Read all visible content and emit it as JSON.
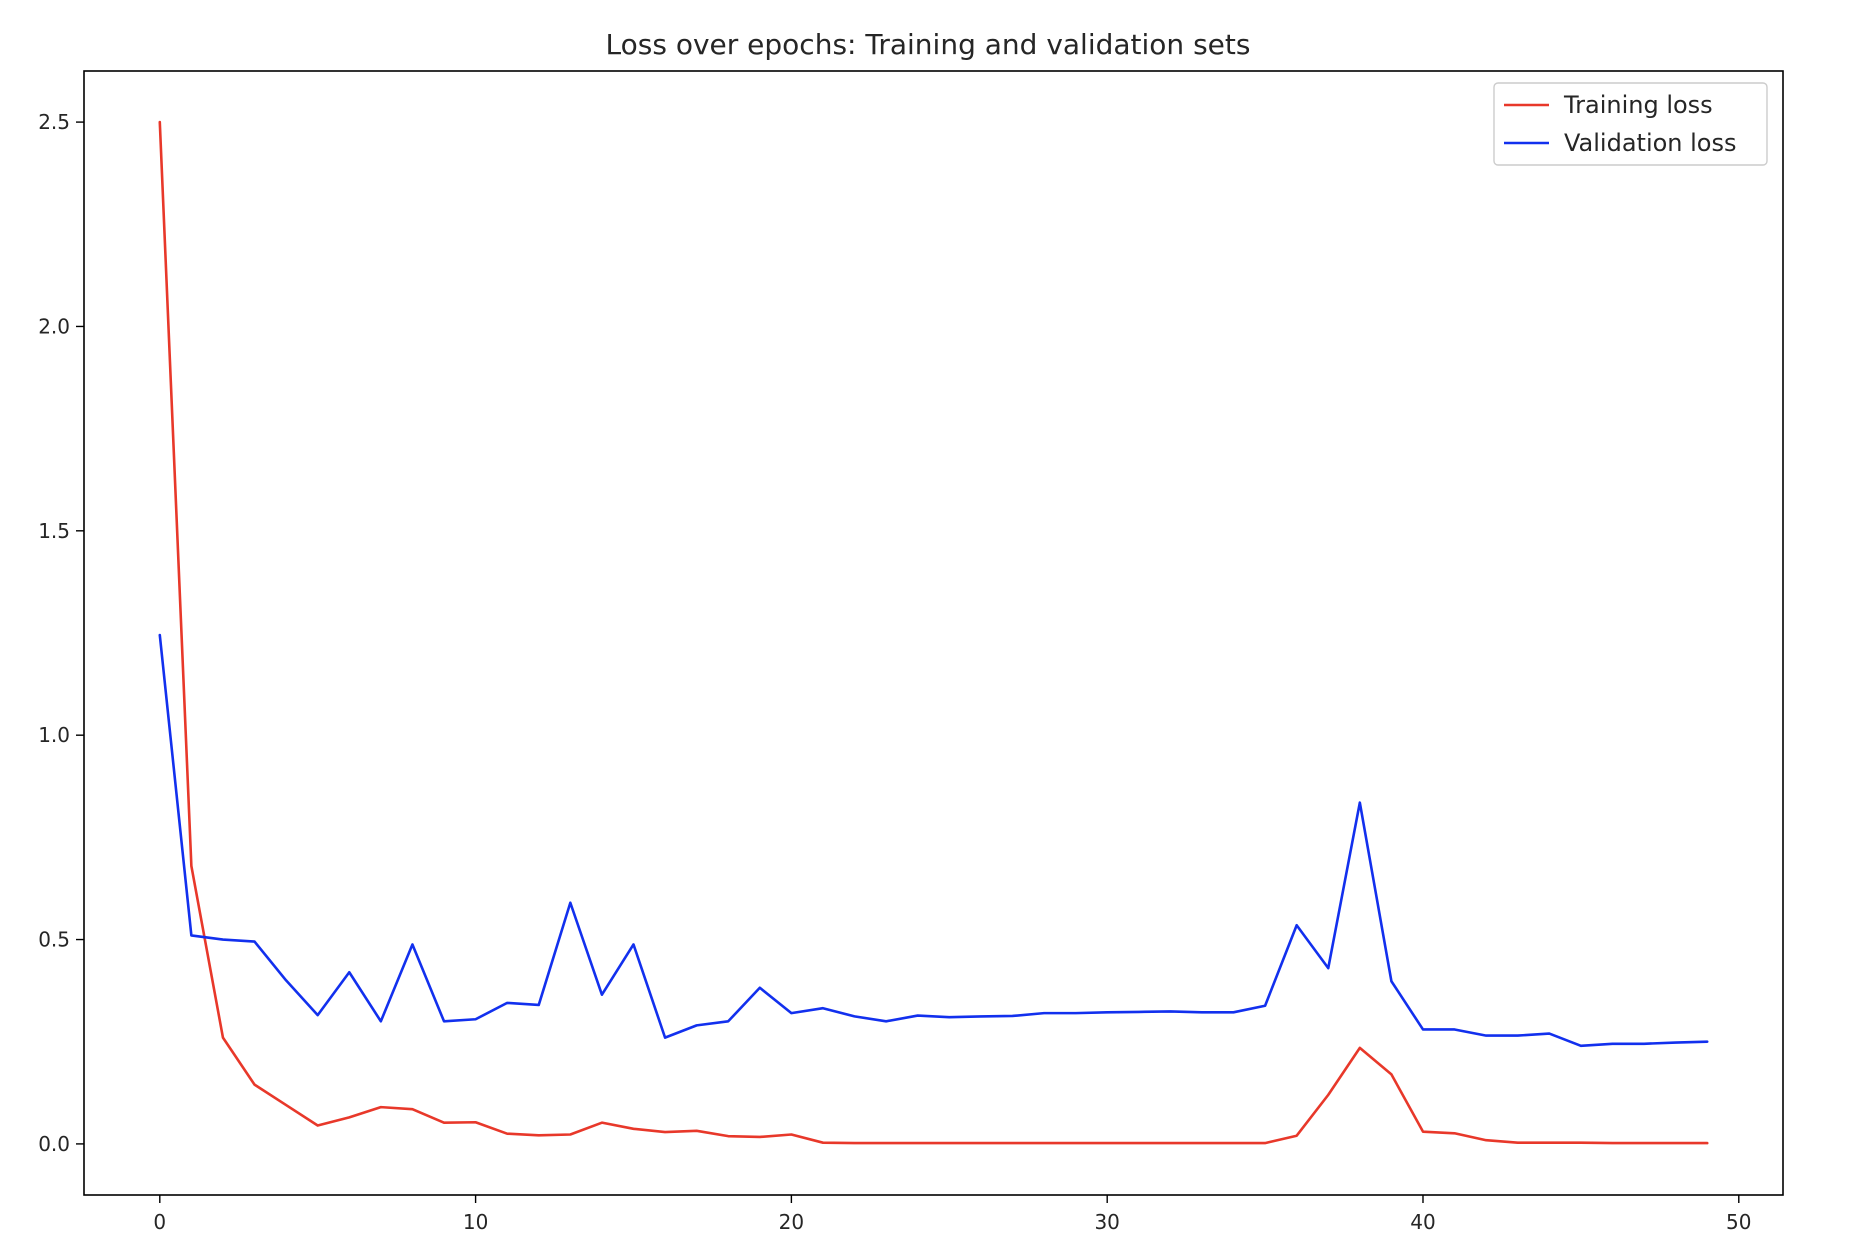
{
  "chart_data": {
    "type": "line",
    "title": "Loss over epochs: Training and validation sets",
    "xlabel": "",
    "ylabel": "",
    "xlim": [
      -2.4,
      51.4
    ],
    "ylim": [
      -0.125,
      2.625
    ],
    "xticks": [
      0,
      10,
      20,
      30,
      40,
      50
    ],
    "yticks": [
      0.0,
      0.5,
      1.0,
      1.5,
      2.0,
      2.5
    ],
    "xtick_labels": [
      "0",
      "10",
      "20",
      "30",
      "40",
      "50"
    ],
    "ytick_labels": [
      "0.0",
      "0.5",
      "1.0",
      "1.5",
      "2.0",
      "2.5"
    ],
    "grid": false,
    "legend_position": "top-right",
    "x": [
      0,
      1,
      2,
      3,
      4,
      5,
      6,
      7,
      8,
      9,
      10,
      11,
      12,
      13,
      14,
      15,
      16,
      17,
      18,
      19,
      20,
      21,
      22,
      23,
      24,
      25,
      26,
      27,
      28,
      29,
      30,
      31,
      32,
      33,
      34,
      35,
      36,
      37,
      38,
      39,
      40,
      41,
      42,
      43,
      44,
      45,
      46,
      47,
      48,
      49
    ],
    "series": [
      {
        "name": "Training loss",
        "color": "#e8382a",
        "values": [
          2.5,
          0.68,
          0.26,
          0.145,
          0.095,
          0.045,
          0.065,
          0.09,
          0.085,
          0.052,
          0.053,
          0.025,
          0.021,
          0.023,
          0.052,
          0.037,
          0.029,
          0.032,
          0.019,
          0.017,
          0.023,
          0.003,
          0.002,
          0.002,
          0.002,
          0.002,
          0.002,
          0.002,
          0.002,
          0.002,
          0.002,
          0.002,
          0.002,
          0.002,
          0.002,
          0.002,
          0.02,
          0.12,
          0.235,
          0.17,
          0.03,
          0.026,
          0.009,
          0.003,
          0.003,
          0.003,
          0.002,
          0.002,
          0.002,
          0.002
        ]
      },
      {
        "name": "Validation loss",
        "color": "#1230ee",
        "values": [
          1.245,
          0.51,
          0.5,
          0.495,
          0.4,
          0.315,
          0.42,
          0.3,
          0.488,
          0.3,
          0.305,
          0.345,
          0.34,
          0.59,
          0.365,
          0.488,
          0.26,
          0.29,
          0.3,
          0.382,
          0.32,
          0.332,
          0.312,
          0.3,
          0.314,
          0.31,
          0.312,
          0.313,
          0.32,
          0.32,
          0.322,
          0.323,
          0.324,
          0.322,
          0.322,
          0.338,
          0.535,
          0.43,
          0.835,
          0.398,
          0.28,
          0.28,
          0.265,
          0.265,
          0.27,
          0.24,
          0.245,
          0.245,
          0.248,
          0.25
        ]
      }
    ]
  }
}
